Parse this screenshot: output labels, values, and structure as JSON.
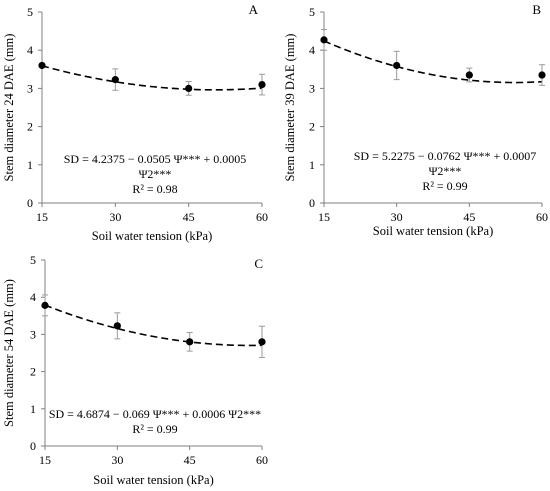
{
  "chart_data": [
    {
      "type": "scatter",
      "panel_label": "A",
      "xlabel": "Soil water tension (kPa)",
      "ylabel": "Stem diameter 24 DAE (mm)",
      "xticks": [
        15,
        30,
        45,
        60
      ],
      "yticks": [
        0,
        1,
        2,
        3,
        4,
        5
      ],
      "xlim": [
        15,
        60
      ],
      "ylim": [
        0,
        5
      ],
      "grid": false,
      "series": [
        {
          "x": [
            15,
            30,
            45,
            60
          ],
          "y": [
            3.6,
            3.23,
            3.0,
            3.1
          ],
          "err": [
            0.0,
            0.28,
            0.18,
            0.27
          ]
        }
      ],
      "fit": {
        "style": "dashed",
        "a": 4.2375,
        "b": -0.0505,
        "c": 0.0005
      },
      "equation": [
        "SD = 4.2375 − 0.0505 Ψ*** + 0.0005",
        "Ψ2***"
      ],
      "r2": "R² = 0.98"
    },
    {
      "type": "scatter",
      "panel_label": "B",
      "xlabel": "Soil water tension (kPa)",
      "ylabel": "Stem diameter 39 DAE (mm)",
      "xticks": [
        15,
        30,
        45,
        60
      ],
      "yticks": [
        0,
        1,
        2,
        3,
        4,
        5
      ],
      "xlim": [
        15,
        60
      ],
      "ylim": [
        0,
        5
      ],
      "grid": false,
      "series": [
        {
          "x": [
            15,
            30,
            45,
            60
          ],
          "y": [
            4.27,
            3.6,
            3.35,
            3.35
          ],
          "err": [
            0.27,
            0.37,
            0.18,
            0.27
          ]
        }
      ],
      "fit": {
        "style": "dashed",
        "a": 5.2275,
        "b": -0.0762,
        "c": 0.0007
      },
      "equation": [
        "SD = 5.2275 − 0.0762 Ψ*** + 0.0007",
        "Ψ2***"
      ],
      "r2": "R² = 0.99"
    },
    {
      "type": "scatter",
      "panel_label": "C",
      "xlabel": "Soil water tension (kPa)",
      "ylabel": "Stem diameter 54 DAE (mm)",
      "xticks": [
        15,
        30,
        45,
        60
      ],
      "yticks": [
        0,
        1,
        2,
        3,
        4,
        5
      ],
      "xlim": [
        15,
        60
      ],
      "ylim": [
        0,
        5
      ],
      "grid": false,
      "series": [
        {
          "x": [
            15,
            30,
            45,
            60
          ],
          "y": [
            3.78,
            3.23,
            2.8,
            2.8
          ],
          "err": [
            0.28,
            0.35,
            0.25,
            0.42
          ]
        }
      ],
      "fit": {
        "style": "dashed",
        "a": 4.6874,
        "b": -0.069,
        "c": 0.0006
      },
      "equation": [
        "SD = 4.6874 − 0.069 Ψ*** + 0.0006 Ψ2***"
      ],
      "r2": "R² = 0.99"
    }
  ]
}
